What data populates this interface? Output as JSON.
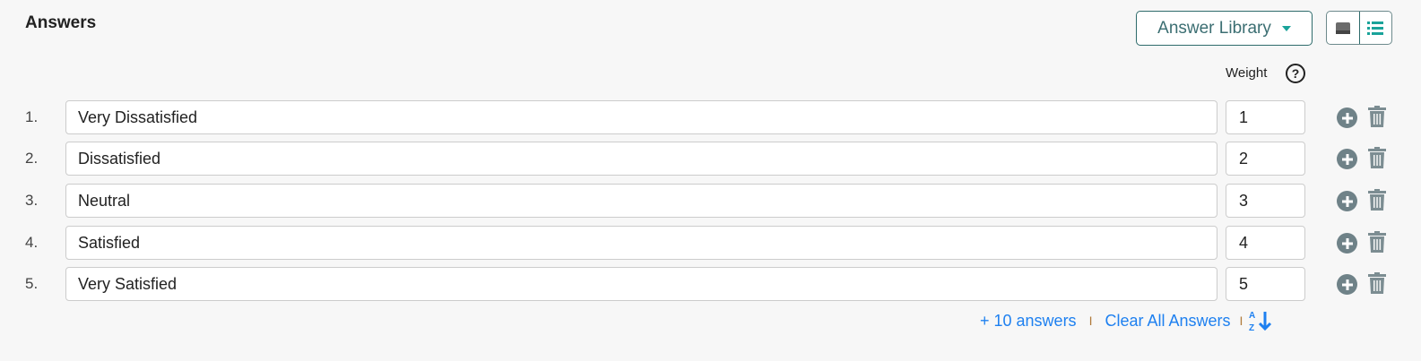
{
  "header": {
    "title": "Answers",
    "library_button": "Answer Library",
    "weight_label": "Weight",
    "help": "?"
  },
  "answers": [
    {
      "num": "1.",
      "text": "Very Dissatisfied",
      "weight": "1"
    },
    {
      "num": "2.",
      "text": "Dissatisfied",
      "weight": "2"
    },
    {
      "num": "3.",
      "text": "Neutral",
      "weight": "3"
    },
    {
      "num": "4.",
      "text": "Satisfied",
      "weight": "4"
    },
    {
      "num": "5.",
      "text": "Very Satisfied",
      "weight": "5"
    }
  ],
  "footer": {
    "add_label": "+ 10 answers",
    "sep": "I",
    "clear_label": "Clear All Answers"
  },
  "colors": {
    "accent": "#1aa39a",
    "link": "#1e80f0",
    "icon": "#6f8288"
  }
}
